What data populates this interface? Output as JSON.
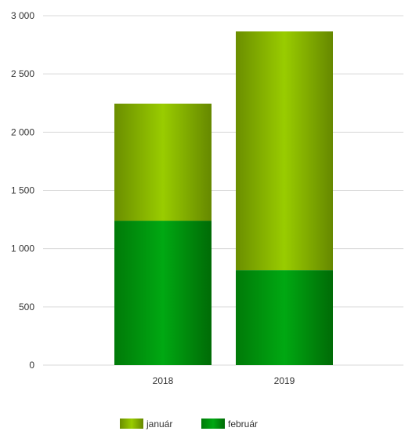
{
  "chart_data": {
    "type": "bar",
    "stacked": true,
    "categories": [
      "2018",
      "2019"
    ],
    "series": [
      {
        "name": "február",
        "values": [
          1240,
          815
        ],
        "color": "#0a9a10"
      },
      {
        "name": "január",
        "values": [
          1005,
          2050
        ],
        "color": "#8fc400"
      }
    ],
    "legend_order": [
      "január",
      "február"
    ],
    "yticks": [
      0,
      500,
      1000,
      1500,
      2000,
      2500,
      3000
    ],
    "ytick_labels": [
      "0",
      "500",
      "1 000",
      "1 500",
      "2 000",
      "2 500",
      "3 000"
    ],
    "ylim": [
      0,
      3000
    ],
    "grid": true,
    "legend_position": "bottom-center",
    "title": "",
    "xlabel": "",
    "ylabel": ""
  }
}
